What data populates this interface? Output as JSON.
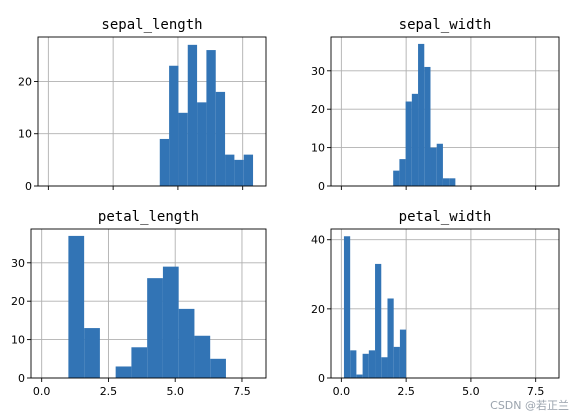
{
  "chart_data": [
    {
      "type": "bar",
      "title": "sepal_length",
      "xlabel": "",
      "ylabel": "",
      "grid": true,
      "xlim": [
        -0.4,
        8.4
      ],
      "ylim": [
        0,
        28.5
      ],
      "xticks": [
        0.0,
        2.5,
        5.0,
        7.5
      ],
      "xtick_labels": [
        "",
        "",
        "",
        ""
      ],
      "yticks": [
        0,
        10,
        20
      ],
      "ytick_labels": [
        "0",
        "10",
        "20"
      ],
      "bin_edges": [
        4.3,
        4.66,
        5.02,
        5.38,
        5.74,
        6.1,
        6.46,
        6.82,
        7.18,
        7.54,
        7.9
      ],
      "values": [
        9,
        23,
        14,
        27,
        16,
        26,
        18,
        6,
        5,
        6
      ]
    },
    {
      "type": "bar",
      "title": "sepal_width",
      "xlabel": "",
      "ylabel": "",
      "grid": true,
      "xlim": [
        -0.4,
        8.4
      ],
      "ylim": [
        0,
        38.8
      ],
      "xticks": [
        0.0,
        2.5,
        5.0,
        7.5
      ],
      "xtick_labels": [
        "",
        "",
        "",
        ""
      ],
      "yticks": [
        0,
        10,
        20,
        30
      ],
      "ytick_labels": [
        "0",
        "10",
        "20",
        "30"
      ],
      "bin_edges": [
        2.0,
        2.24,
        2.48,
        2.72,
        2.96,
        3.2,
        3.44,
        3.68,
        3.92,
        4.16,
        4.4
      ],
      "values": [
        4,
        7,
        22,
        24,
        37,
        31,
        10,
        11,
        2,
        2
      ]
    },
    {
      "type": "bar",
      "title": "petal_length",
      "xlabel": "",
      "ylabel": "",
      "grid": true,
      "xlim": [
        -0.4,
        8.4
      ],
      "ylim": [
        0,
        38.8
      ],
      "xticks": [
        0.0,
        2.5,
        5.0,
        7.5
      ],
      "xtick_labels": [
        "0.0",
        "2.5",
        "5.0",
        "7.5"
      ],
      "yticks": [
        0,
        10,
        20,
        30
      ],
      "ytick_labels": [
        "0",
        "10",
        "20",
        "30"
      ],
      "bin_edges": [
        1.0,
        1.59,
        2.18,
        2.77,
        3.36,
        3.95,
        4.54,
        5.13,
        5.72,
        6.31,
        6.9
      ],
      "values": [
        37,
        13,
        0,
        3,
        8,
        26,
        29,
        18,
        11,
        5
      ]
    },
    {
      "type": "bar",
      "title": "petal_width",
      "xlabel": "",
      "ylabel": "",
      "grid": true,
      "xlim": [
        -0.4,
        8.4
      ],
      "ylim": [
        0,
        43.1
      ],
      "xticks": [
        0.0,
        2.5,
        5.0,
        7.5
      ],
      "xtick_labels": [
        "0.0",
        "2.5",
        "5.0",
        "7.5"
      ],
      "yticks": [
        0,
        20,
        40
      ],
      "ytick_labels": [
        "0",
        "20",
        "40"
      ],
      "bin_edges": [
        0.1,
        0.34,
        0.58,
        0.82,
        1.06,
        1.3,
        1.54,
        1.78,
        2.02,
        2.26,
        2.5
      ],
      "values": [
        41,
        8,
        1,
        7,
        8,
        33,
        6,
        23,
        9,
        14
      ]
    }
  ],
  "colors": {
    "bar": "#3274b5",
    "grid": "#b0b0b0",
    "axis": "#000000"
  },
  "watermark": "CSDN @若正兰"
}
